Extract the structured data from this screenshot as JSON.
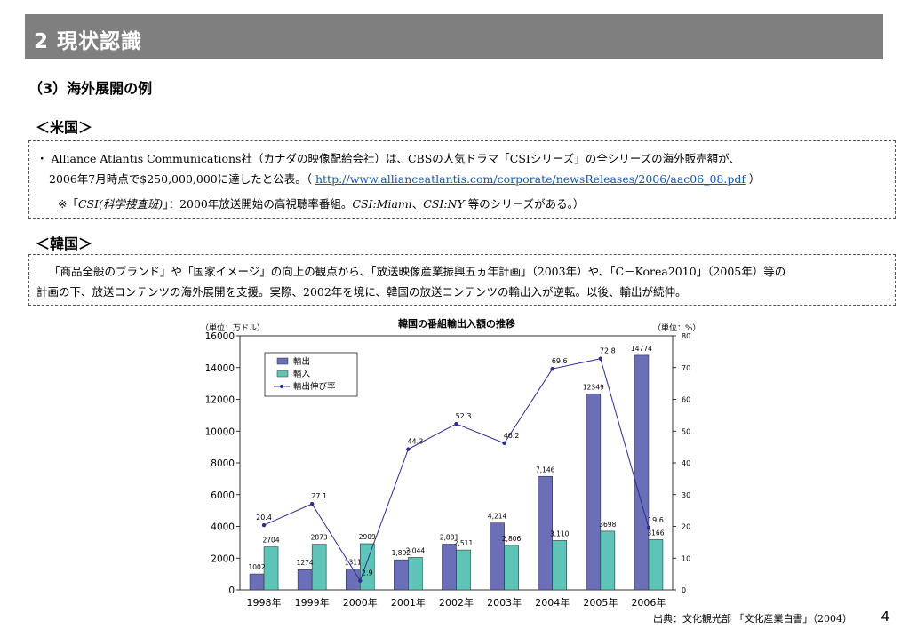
{
  "slide": {
    "section_title": "2 現状認識",
    "subtitle": "（3）海外展開の例",
    "usa_heading": "＜米国＞",
    "usa_line1": "・ Alliance Atlantis Communications社（カナダの映像配給会社）は、CBSの人気ドラマ「CSIシリーズ」の全シリーズの海外販売額が、",
    "usa_line2_pre": "2006年7月時点で$250,000,000に達したと公表。（ ",
    "usa_link": "http://www.allianceatlantis.com/corporate/newsReleases/2006/aac06_08.pdf",
    "usa_line2_post": " ）",
    "usa_note_pre": "※「",
    "usa_note_title": "CSI(科学捜査班)",
    "usa_note_mid": "」：2000年放送開始の高視聴率番組。",
    "usa_note_s1": "CSI:Miami",
    "usa_note_sep": "、",
    "usa_note_s2": "CSI:NY",
    "usa_note_post": " 等のシリーズがある。）",
    "korea_heading": "＜韓国＞",
    "korea_line1": "「商品全般のブランド」や「国家イメージ」の向上の観点から、「放送映像産業振興五ヵ年計画」（2003年）や、「C－Korea2010」（2005年）等の",
    "korea_line2": "計画の下、放送コンテンツの海外展開を支援。実際、2002年を境に、韓国の放送コンテンツの輸出入が逆転。以後、輸出が続伸。",
    "source": "出典：文化観光部 「文化産業白書」（2004）",
    "page_number": "4"
  },
  "chart_data": {
    "type": "bar",
    "title": "韓国の番組輸出入額の推移",
    "ylabel_left": "（単位：万ドル）",
    "ylabel_right": "（単位：%）",
    "categories": [
      "1998年",
      "1999年",
      "2000年",
      "2001年",
      "2002年",
      "2003年",
      "2004年",
      "2005年",
      "2006年"
    ],
    "ylim": [
      0,
      16000
    ],
    "y_ticks": [
      "0",
      "2000",
      "4000",
      "6000",
      "8000",
      "10000",
      "12000",
      "14000",
      "16000"
    ],
    "ylim_right": [
      0,
      80
    ],
    "y_ticks_right": [
      "0",
      "10",
      "20",
      "30",
      "40",
      "50",
      "60",
      "70",
      "80"
    ],
    "series": [
      {
        "name": "輸出",
        "type": "bar",
        "color": "#6b6fb8",
        "values": [
          1002,
          1274,
          1311,
          1892,
          2881,
          4214,
          7146,
          12349,
          14774
        ],
        "labels": [
          "1002",
          "1274",
          "1311",
          "1,892",
          "2,881",
          "4,214",
          "7,146",
          "12349",
          "14774"
        ]
      },
      {
        "name": "輸入",
        "type": "bar",
        "color": "#5fc4b8",
        "values": [
          2704,
          2873,
          2909,
          2044,
          2511,
          2806,
          3110,
          3698,
          3166
        ],
        "labels": [
          "2704",
          "2873",
          "2909",
          "2,044",
          "2,511",
          "2,806",
          "3,110",
          "3698",
          "3166"
        ]
      },
      {
        "name": "輸出伸び率",
        "type": "line",
        "axis": "right",
        "color": "#2d2d8f",
        "values": [
          20.4,
          27.1,
          2.9,
          44.3,
          52.3,
          46.2,
          69.6,
          72.8,
          19.6
        ],
        "labels": [
          "20.4",
          "27.1",
          "2.9",
          "44.3",
          "52.3",
          "46.2",
          "69.6",
          "72.8",
          "19.6"
        ]
      }
    ],
    "grid": false,
    "legend": "top-left"
  }
}
